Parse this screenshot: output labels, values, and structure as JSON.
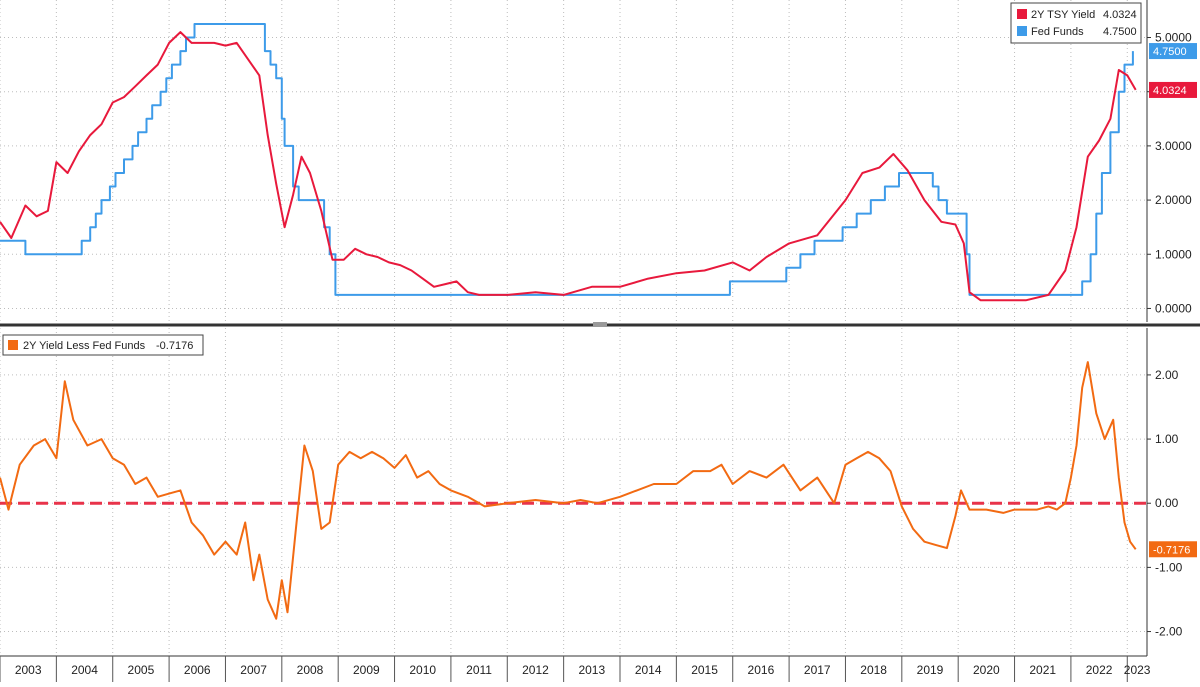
{
  "colors": {
    "treasury": "#e8193c",
    "fed": "#3d9be9",
    "spread": "#f26a12",
    "zero_line": "#e8334a",
    "grid": "#bdbdbd",
    "axis": "#333333"
  },
  "chart_data": [
    {
      "type": "line",
      "panel": "top",
      "ylim": [
        -0.25,
        5.6
      ],
      "y_ticks": [
        "5.0000",
        "4.0000",
        "3.0000",
        "2.0000",
        "1.0000",
        "0.0000"
      ],
      "y_tick_values": [
        5,
        4,
        3,
        2,
        1,
        0
      ],
      "grid": true,
      "legend_position": "top-right",
      "legend": [
        {
          "name": "2Y TSY Yield",
          "value": "4.0324"
        },
        {
          "name": "Fed Funds",
          "value": "4.7500"
        }
      ],
      "last_value_labels": [
        {
          "series": "Fed Funds",
          "text": "4.7500",
          "value": 4.75
        },
        {
          "series": "2Y TSY Yield",
          "text": "4.0324",
          "value": 4.0324
        }
      ],
      "series": [
        {
          "name": "2Y TSY Yield",
          "x": [
            2003.0,
            2003.2,
            2003.45,
            2003.65,
            2003.85,
            2004.0,
            2004.2,
            2004.4,
            2004.6,
            2004.8,
            2005.0,
            2005.2,
            2005.4,
            2005.6,
            2005.8,
            2006.0,
            2006.2,
            2006.4,
            2006.6,
            2006.8,
            2007.0,
            2007.2,
            2007.4,
            2007.6,
            2007.75,
            2007.9,
            2008.05,
            2008.2,
            2008.35,
            2008.5,
            2008.7,
            2008.9,
            2009.1,
            2009.3,
            2009.5,
            2009.7,
            2009.9,
            2010.1,
            2010.3,
            2010.5,
            2010.7,
            2010.9,
            2011.1,
            2011.3,
            2011.5,
            2011.7,
            2012.0,
            2012.5,
            2013.0,
            2013.5,
            2014.0,
            2014.5,
            2015.0,
            2015.5,
            2016.0,
            2016.3,
            2016.6,
            2017.0,
            2017.5,
            2018.0,
            2018.3,
            2018.6,
            2018.85,
            2019.1,
            2019.4,
            2019.7,
            2019.95,
            2020.1,
            2020.2,
            2020.4,
            2020.8,
            2021.2,
            2021.6,
            2021.9,
            2022.1,
            2022.3,
            2022.5,
            2022.7,
            2022.85,
            2023.0,
            2023.15
          ],
          "values": [
            1.6,
            1.3,
            1.9,
            1.7,
            1.8,
            2.7,
            2.5,
            2.9,
            3.2,
            3.4,
            3.8,
            3.9,
            4.1,
            4.3,
            4.5,
            4.9,
            5.1,
            4.9,
            4.9,
            4.9,
            4.85,
            4.9,
            4.6,
            4.3,
            3.2,
            2.3,
            1.5,
            2.1,
            2.8,
            2.5,
            1.8,
            0.9,
            0.9,
            1.1,
            1.0,
            0.95,
            0.85,
            0.8,
            0.7,
            0.55,
            0.4,
            0.45,
            0.5,
            0.3,
            0.25,
            0.25,
            0.25,
            0.3,
            0.25,
            0.4,
            0.4,
            0.55,
            0.65,
            0.7,
            0.85,
            0.7,
            0.95,
            1.2,
            1.35,
            2.0,
            2.5,
            2.6,
            2.85,
            2.55,
            2.0,
            1.6,
            1.55,
            1.2,
            0.3,
            0.15,
            0.15,
            0.15,
            0.25,
            0.7,
            1.5,
            2.8,
            3.1,
            3.5,
            4.4,
            4.3,
            4.0324
          ]
        },
        {
          "name": "Fed Funds",
          "x": [
            2003.0,
            2003.45,
            2004.45,
            2004.6,
            2004.7,
            2004.8,
            2004.95,
            2005.05,
            2005.2,
            2005.35,
            2005.45,
            2005.6,
            2005.7,
            2005.85,
            2005.95,
            2006.05,
            2006.2,
            2006.3,
            2006.45,
            2007.7,
            2007.8,
            2007.9,
            2008.0,
            2008.05,
            2008.2,
            2008.3,
            2008.75,
            2008.85,
            2008.95,
            2015.95,
            2016.95,
            2017.2,
            2017.45,
            2017.95,
            2018.2,
            2018.45,
            2018.7,
            2018.95,
            2019.55,
            2019.65,
            2019.8,
            2020.15,
            2020.2,
            2022.2,
            2022.35,
            2022.45,
            2022.55,
            2022.7,
            2022.85,
            2022.95,
            2023.1
          ],
          "values": [
            1.25,
            1.0,
            1.25,
            1.5,
            1.75,
            2.0,
            2.25,
            2.5,
            2.75,
            3.0,
            3.25,
            3.5,
            3.75,
            4.0,
            4.25,
            4.5,
            4.75,
            5.0,
            5.25,
            4.75,
            4.5,
            4.25,
            3.5,
            3.0,
            2.25,
            2.0,
            1.5,
            1.0,
            0.25,
            0.5,
            0.75,
            1.0,
            1.25,
            1.5,
            1.75,
            2.0,
            2.25,
            2.5,
            2.25,
            2.0,
            1.75,
            1.0,
            0.25,
            0.5,
            1.0,
            1.75,
            2.5,
            3.25,
            4.0,
            4.5,
            4.75
          ]
        }
      ]
    },
    {
      "type": "line",
      "panel": "bottom",
      "ylim": [
        -2.35,
        2.7
      ],
      "y_ticks": [
        "2.00",
        "1.00",
        "0.00",
        "-1.00",
        "-2.00"
      ],
      "y_tick_values": [
        2,
        1,
        0,
        -1,
        -2
      ],
      "grid": true,
      "legend_position": "top-left",
      "legend": [
        {
          "name": "2Y Yield Less Fed Funds",
          "value": "-0.7176"
        }
      ],
      "last_value_labels": [
        {
          "series": "2Y Yield Less Fed Funds",
          "text": "-0.7176",
          "value": -0.7176
        }
      ],
      "reference_line": {
        "value": 0,
        "style": "dashed"
      },
      "series": [
        {
          "name": "2Y Yield Less Fed Funds",
          "x": [
            2003.0,
            2003.15,
            2003.35,
            2003.6,
            2003.8,
            2004.0,
            2004.15,
            2004.3,
            2004.55,
            2004.8,
            2005.0,
            2005.2,
            2005.4,
            2005.6,
            2005.8,
            2006.0,
            2006.2,
            2006.4,
            2006.6,
            2006.8,
            2007.0,
            2007.2,
            2007.35,
            2007.5,
            2007.6,
            2007.75,
            2007.9,
            2008.0,
            2008.1,
            2008.25,
            2008.4,
            2008.55,
            2008.7,
            2008.85,
            2009.0,
            2009.2,
            2009.4,
            2009.6,
            2009.8,
            2010.0,
            2010.2,
            2010.4,
            2010.6,
            2010.8,
            2011.0,
            2011.3,
            2011.6,
            2012.0,
            2012.5,
            2013.0,
            2013.3,
            2013.6,
            2014.0,
            2014.3,
            2014.6,
            2015.0,
            2015.3,
            2015.6,
            2015.8,
            2016.0,
            2016.3,
            2016.6,
            2016.9,
            2017.2,
            2017.5,
            2017.8,
            2018.0,
            2018.2,
            2018.4,
            2018.6,
            2018.8,
            2019.0,
            2019.2,
            2019.4,
            2019.6,
            2019.8,
            2019.95,
            2020.05,
            2020.2,
            2020.5,
            2020.8,
            2021.0,
            2021.2,
            2021.4,
            2021.6,
            2021.75,
            2021.9,
            2022.0,
            2022.1,
            2022.2,
            2022.3,
            2022.45,
            2022.6,
            2022.75,
            2022.85,
            2022.95,
            2023.05,
            2023.15
          ],
          "values": [
            0.4,
            -0.1,
            0.6,
            0.9,
            1.0,
            0.7,
            1.9,
            1.3,
            0.9,
            1.0,
            0.7,
            0.6,
            0.3,
            0.4,
            0.1,
            0.15,
            0.2,
            -0.3,
            -0.5,
            -0.8,
            -0.6,
            -0.8,
            -0.3,
            -1.2,
            -0.8,
            -1.5,
            -1.8,
            -1.2,
            -1.7,
            -0.4,
            0.9,
            0.5,
            -0.4,
            -0.3,
            0.6,
            0.8,
            0.7,
            0.8,
            0.7,
            0.55,
            0.75,
            0.4,
            0.5,
            0.3,
            0.2,
            0.1,
            -0.05,
            0.0,
            0.05,
            0.0,
            0.05,
            0.0,
            0.1,
            0.2,
            0.3,
            0.3,
            0.5,
            0.5,
            0.6,
            0.3,
            0.5,
            0.4,
            0.6,
            0.2,
            0.4,
            0.0,
            0.6,
            0.7,
            0.8,
            0.7,
            0.5,
            -0.05,
            -0.4,
            -0.6,
            -0.65,
            -0.7,
            -0.2,
            0.2,
            -0.1,
            -0.1,
            -0.15,
            -0.1,
            -0.1,
            -0.1,
            -0.05,
            -0.1,
            0.0,
            0.4,
            0.9,
            1.8,
            2.2,
            1.4,
            1.0,
            1.3,
            0.4,
            -0.3,
            -0.6,
            -0.7176
          ]
        }
      ]
    }
  ],
  "x_axis": {
    "labels": [
      "2003",
      "2004",
      "2005",
      "2006",
      "2007",
      "2008",
      "2009",
      "2010",
      "2011",
      "2012",
      "2013",
      "2014",
      "2015",
      "2016",
      "2017",
      "2018",
      "2019",
      "2020",
      "2021",
      "2022",
      "2023"
    ],
    "values": [
      2003,
      2004,
      2005,
      2006,
      2007,
      2008,
      2009,
      2010,
      2011,
      2012,
      2013,
      2014,
      2015,
      2016,
      2017,
      2018,
      2019,
      2020,
      2021,
      2022,
      2023
    ],
    "range": [
      2003.0,
      2023.35
    ]
  }
}
